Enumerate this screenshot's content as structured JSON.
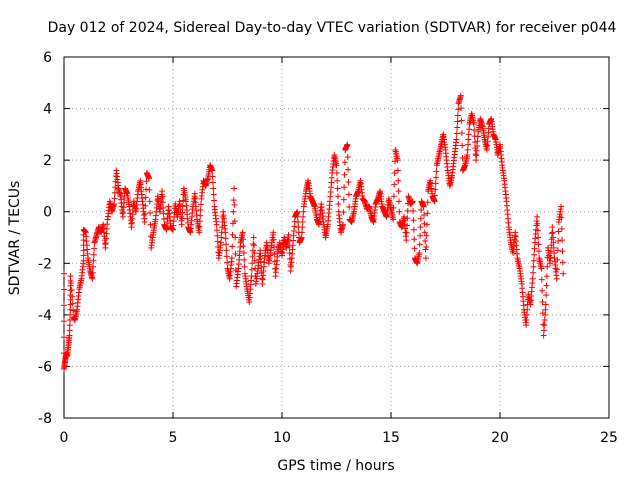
{
  "chart_data": {
    "type": "scatter",
    "title": "Day 012 of 2024, Sidereal Day-to-day VTEC variation (SDTVAR) for receiver p044",
    "xlabel": "GPS time / hours",
    "ylabel": "SDTVAR / TECUs",
    "xlim": [
      0,
      25
    ],
    "ylim": [
      -8,
      6
    ],
    "x_ticks": [
      0,
      5,
      10,
      15,
      20,
      25
    ],
    "y_ticks": [
      -8,
      -6,
      -4,
      -2,
      0,
      2,
      4,
      6
    ],
    "grid": true,
    "marker": "+",
    "series": [
      {
        "name": "SDTVAR",
        "color": "#ff0000",
        "points": [
          [
            0.0,
            -2.4
          ],
          [
            0.0,
            -6.1
          ],
          [
            0.05,
            -5.8
          ],
          [
            0.1,
            -5.5
          ],
          [
            0.15,
            -5.6
          ],
          [
            0.2,
            -5.2
          ],
          [
            0.25,
            -4.8
          ],
          [
            0.3,
            -3.6
          ],
          [
            0.3,
            -2.5
          ],
          [
            0.45,
            -4.1
          ],
          [
            0.5,
            -4.2
          ],
          [
            0.6,
            -3.8
          ],
          [
            0.7,
            -3.0
          ],
          [
            0.8,
            -2.6
          ],
          [
            0.9,
            -1.9
          ],
          [
            0.9,
            -0.7
          ],
          [
            1.0,
            -0.8
          ],
          [
            1.1,
            -1.8
          ],
          [
            1.2,
            -2.3
          ],
          [
            1.3,
            -2.6
          ],
          [
            1.4,
            -1.2
          ],
          [
            1.5,
            -0.9
          ],
          [
            1.6,
            -0.6
          ],
          [
            1.7,
            -0.8
          ],
          [
            1.8,
            -0.5
          ],
          [
            1.9,
            -1.4
          ],
          [
            2.0,
            -0.3
          ],
          [
            2.1,
            0.4
          ],
          [
            2.2,
            0.0
          ],
          [
            2.3,
            0.3
          ],
          [
            2.4,
            1.6
          ],
          [
            2.5,
            0.9
          ],
          [
            2.6,
            0.6
          ],
          [
            2.7,
            -0.2
          ],
          [
            2.8,
            0.9
          ],
          [
            2.9,
            0.7
          ],
          [
            3.0,
            0.2
          ],
          [
            3.1,
            -0.6
          ],
          [
            3.2,
            0.4
          ],
          [
            3.3,
            0.0
          ],
          [
            3.4,
            0.8
          ],
          [
            3.5,
            1.2
          ],
          [
            3.6,
            0.4
          ],
          [
            3.7,
            -0.4
          ],
          [
            3.8,
            1.5
          ],
          [
            3.9,
            1.3
          ],
          [
            4.0,
            -1.4
          ],
          [
            4.1,
            -0.8
          ],
          [
            4.2,
            -0.3
          ],
          [
            4.3,
            0.6
          ],
          [
            4.4,
            0.0
          ],
          [
            4.5,
            0.8
          ],
          [
            4.6,
            -0.5
          ],
          [
            4.7,
            -0.7
          ],
          [
            4.8,
            0.2
          ],
          [
            4.9,
            -0.6
          ],
          [
            5.0,
            -0.7
          ],
          [
            5.1,
            0.3
          ],
          [
            5.2,
            -0.2
          ],
          [
            5.3,
            0.4
          ],
          [
            5.4,
            -0.5
          ],
          [
            5.5,
            0.9
          ],
          [
            5.6,
            0.4
          ],
          [
            5.7,
            -0.6
          ],
          [
            5.8,
            -0.8
          ],
          [
            5.9,
            0.1
          ],
          [
            6.0,
            0.7
          ],
          [
            6.1,
            -0.3
          ],
          [
            6.2,
            -0.8
          ],
          [
            6.3,
            0.5
          ],
          [
            6.4,
            1.2
          ],
          [
            6.5,
            1.0
          ],
          [
            6.6,
            1.3
          ],
          [
            6.7,
            1.8
          ],
          [
            6.8,
            1.6
          ],
          [
            6.9,
            0.2
          ],
          [
            7.0,
            -0.5
          ],
          [
            7.1,
            -1.8
          ],
          [
            7.2,
            -1.2
          ],
          [
            7.3,
            0.0
          ],
          [
            7.4,
            -0.8
          ],
          [
            7.5,
            -2.2
          ],
          [
            7.6,
            -2.6
          ],
          [
            7.7,
            -1.8
          ],
          [
            7.8,
            0.9
          ],
          [
            7.9,
            -2.9
          ],
          [
            8.0,
            -2.2
          ],
          [
            8.1,
            -1.2
          ],
          [
            8.2,
            -0.8
          ],
          [
            8.3,
            -2.4
          ],
          [
            8.4,
            -3.0
          ],
          [
            8.5,
            -3.5
          ],
          [
            8.6,
            -2.5
          ],
          [
            8.7,
            -1.0
          ],
          [
            8.8,
            -2.8
          ],
          [
            8.9,
            -2.2
          ],
          [
            9.0,
            -1.5
          ],
          [
            9.1,
            -2.8
          ],
          [
            9.2,
            -1.8
          ],
          [
            9.3,
            -1.2
          ],
          [
            9.4,
            -2.0
          ],
          [
            9.5,
            -1.4
          ],
          [
            9.6,
            -0.8
          ],
          [
            9.7,
            -2.5
          ],
          [
            9.8,
            -1.6
          ],
          [
            9.9,
            -1.2
          ],
          [
            10.0,
            -1.7
          ],
          [
            10.1,
            -1.0
          ],
          [
            10.2,
            -1.4
          ],
          [
            10.3,
            -0.9
          ],
          [
            10.4,
            -2.3
          ],
          [
            10.5,
            -1.3
          ],
          [
            10.6,
            -0.2
          ],
          [
            10.7,
            0.0
          ],
          [
            10.8,
            -1.2
          ],
          [
            10.9,
            -1.0
          ],
          [
            11.0,
            0.2
          ],
          [
            11.1,
            0.8
          ],
          [
            11.2,
            1.2
          ],
          [
            11.3,
            0.6
          ],
          [
            11.4,
            0.4
          ],
          [
            11.5,
            0.2
          ],
          [
            11.6,
            -0.3
          ],
          [
            11.7,
            -0.5
          ],
          [
            11.8,
            0.3
          ],
          [
            11.9,
            -0.4
          ],
          [
            12.0,
            -1.0
          ],
          [
            12.1,
            -0.5
          ],
          [
            12.2,
            0.4
          ],
          [
            12.3,
            1.5
          ],
          [
            12.4,
            2.2
          ],
          [
            12.5,
            1.8
          ],
          [
            12.6,
            0.0
          ],
          [
            12.7,
            -0.8
          ],
          [
            12.8,
            -0.5
          ],
          [
            12.9,
            2.4
          ],
          [
            13.0,
            2.6
          ],
          [
            13.1,
            -0.3
          ],
          [
            13.2,
            -0.4
          ],
          [
            13.3,
            0.0
          ],
          [
            13.4,
            0.6
          ],
          [
            13.5,
            0.8
          ],
          [
            13.6,
            1.2
          ],
          [
            13.7,
            0.5
          ],
          [
            13.8,
            0.4
          ],
          [
            13.9,
            0.1
          ],
          [
            14.0,
            0.2
          ],
          [
            14.1,
            -0.2
          ],
          [
            14.2,
            -0.4
          ],
          [
            14.3,
            0.3
          ],
          [
            14.4,
            0.5
          ],
          [
            14.5,
            0.8
          ],
          [
            14.6,
            0.2
          ],
          [
            14.7,
            0.0
          ],
          [
            14.8,
            -0.2
          ],
          [
            14.9,
            0.5
          ],
          [
            15.0,
            0.1
          ],
          [
            15.1,
            -0.3
          ],
          [
            15.2,
            2.4
          ],
          [
            15.3,
            2.0
          ],
          [
            15.4,
            -0.4
          ],
          [
            15.5,
            -0.6
          ],
          [
            15.6,
            -0.2
          ],
          [
            15.7,
            -1.1
          ],
          [
            15.8,
            0.6
          ],
          [
            15.9,
            0.3
          ],
          [
            16.0,
            0.4
          ],
          [
            16.1,
            -1.8
          ],
          [
            16.2,
            -2.0
          ],
          [
            16.3,
            -1.6
          ],
          [
            16.4,
            0.4
          ],
          [
            16.5,
            0.2
          ],
          [
            16.6,
            -1.8
          ],
          [
            16.7,
            0.8
          ],
          [
            16.8,
            1.2
          ],
          [
            16.9,
            0.6
          ],
          [
            17.0,
            0.4
          ],
          [
            17.1,
            1.8
          ],
          [
            17.2,
            2.2
          ],
          [
            17.3,
            2.6
          ],
          [
            17.4,
            3.0
          ],
          [
            17.5,
            2.4
          ],
          [
            17.6,
            1.6
          ],
          [
            17.7,
            1.0
          ],
          [
            17.8,
            1.4
          ],
          [
            17.9,
            2.1
          ],
          [
            18.0,
            2.8
          ],
          [
            18.1,
            4.2
          ],
          [
            18.2,
            4.5
          ],
          [
            18.3,
            1.6
          ],
          [
            18.4,
            1.8
          ],
          [
            18.5,
            2.2
          ],
          [
            18.6,
            3.4
          ],
          [
            18.7,
            3.8
          ],
          [
            18.8,
            3.4
          ],
          [
            18.9,
            2.0
          ],
          [
            19.0,
            3.1
          ],
          [
            19.1,
            3.6
          ],
          [
            19.2,
            3.3
          ],
          [
            19.3,
            2.8
          ],
          [
            19.4,
            2.4
          ],
          [
            19.5,
            3.4
          ],
          [
            19.6,
            3.6
          ],
          [
            19.7,
            3.0
          ],
          [
            19.8,
            2.8
          ],
          [
            19.9,
            2.2
          ],
          [
            20.0,
            2.6
          ],
          [
            20.1,
            1.8
          ],
          [
            20.2,
            1.2
          ],
          [
            20.3,
            0.4
          ],
          [
            20.4,
            -0.6
          ],
          [
            20.5,
            -1.2
          ],
          [
            20.6,
            -1.6
          ],
          [
            20.7,
            -0.8
          ],
          [
            20.8,
            -1.8
          ],
          [
            20.9,
            -2.2
          ],
          [
            21.0,
            -2.8
          ],
          [
            21.1,
            -3.8
          ],
          [
            21.2,
            -4.4
          ],
          [
            21.3,
            -3.2
          ],
          [
            21.4,
            -3.6
          ],
          [
            21.5,
            -2.6
          ],
          [
            21.6,
            -1.2
          ],
          [
            21.7,
            -0.2
          ],
          [
            21.8,
            -1.8
          ],
          [
            21.9,
            -2.2
          ],
          [
            22.0,
            -4.8
          ],
          [
            22.1,
            -3.6
          ],
          [
            22.2,
            -1.4
          ],
          [
            22.3,
            -2.0
          ],
          [
            22.4,
            -0.6
          ],
          [
            22.5,
            -1.8
          ],
          [
            22.6,
            -2.6
          ],
          [
            22.7,
            -0.4
          ],
          [
            22.8,
            0.2
          ],
          [
            22.9,
            -2.4
          ]
        ]
      }
    ]
  }
}
